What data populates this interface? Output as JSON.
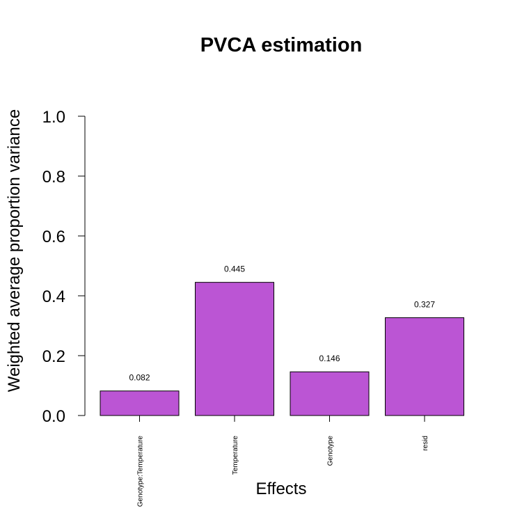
{
  "chart_data": {
    "type": "bar",
    "title": "PVCA estimation",
    "xlabel": "Effects",
    "ylabel": "Weighted average proportion variance",
    "categories": [
      "Genotype:Temperature",
      "Temperature",
      "Genotype",
      "resid"
    ],
    "values": [
      0.082,
      0.445,
      0.146,
      0.327
    ],
    "data_labels": [
      "0.082",
      "0.445",
      "0.146",
      "0.327"
    ],
    "ylim": [
      0,
      1
    ],
    "yticks": [
      0,
      0.2,
      0.4,
      0.6,
      0.8,
      1
    ],
    "ytick_labels": [
      "0.0",
      "0.2",
      "0.4",
      "0.6",
      "0.8",
      "1.0"
    ],
    "grid": false,
    "bar_color": "#bb55d4",
    "bar_border_color": "#000000"
  }
}
